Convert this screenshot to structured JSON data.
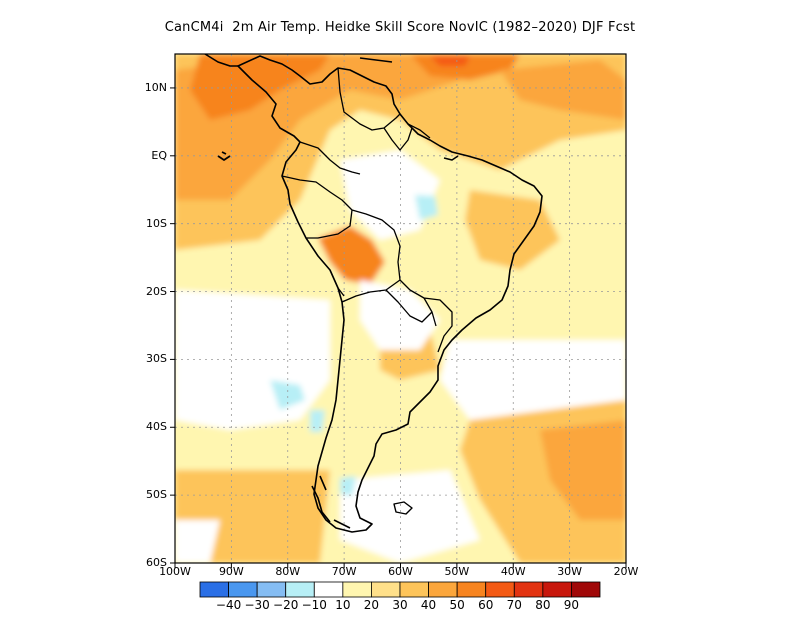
{
  "title": "CanCM4i  2m Air Temp. Heidke Skill Score NovIC (1982–2020) DJF Fcst",
  "axes": {
    "lat_labels": [
      "10N",
      "EQ",
      "10S",
      "20S",
      "30S",
      "40S",
      "50S",
      "60S"
    ],
    "lon_labels": [
      "100W",
      "90W",
      "80W",
      "70W",
      "60W",
      "50W",
      "40W",
      "30W",
      "20W"
    ]
  },
  "colorbar": {
    "colors": [
      "#2a6fe6",
      "#4a97ef",
      "#85bdf3",
      "#b7eff6",
      "#ffffff",
      "#fff6b0",
      "#ffe08a",
      "#fdc45a",
      "#fba63c",
      "#f7841f",
      "#f45a14",
      "#e23311",
      "#c8170c",
      "#a00808"
    ],
    "labels": [
      "−40",
      "−30",
      "−20",
      "−10",
      "10",
      "20",
      "30",
      "40",
      "50",
      "60",
      "70",
      "80",
      "90"
    ]
  },
  "chart_data": {
    "type": "heatmap",
    "title": "CanCM4i  2m Air Temp. Heidke Skill Score NovIC (1982–2020) DJF Fcst",
    "xlim": [
      -100,
      -20
    ],
    "ylim": [
      -60,
      15
    ],
    "contour_levels": [
      -40,
      -30,
      -20,
      -10,
      10,
      20,
      30,
      40,
      50,
      60,
      70,
      80,
      90
    ],
    "grid": true
  }
}
